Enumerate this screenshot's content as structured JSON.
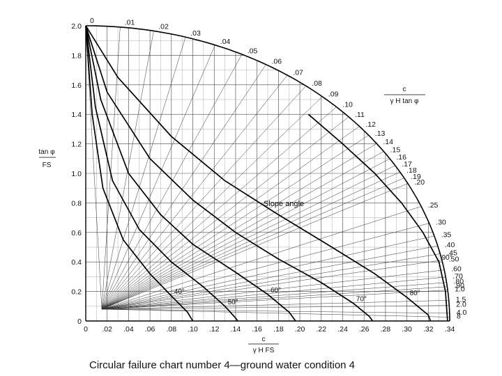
{
  "caption": "Circular failure chart number 4—ground water condition 4",
  "chart_data": {
    "type": "line",
    "title": "",
    "xlabel": {
      "top": "c",
      "bottom": "γ H FS"
    },
    "ylabel": {
      "top": "tan φ",
      "bottom": "FS"
    },
    "right_label": {
      "top": "c",
      "bottom": "γ H tan φ"
    },
    "xlim": [
      0,
      0.34
    ],
    "ylim": [
      0,
      2.0
    ],
    "grid": true,
    "x_ticks": [
      {
        "value": 0,
        "label": "0"
      },
      {
        "value": 0.02,
        "label": ".02"
      },
      {
        "value": 0.04,
        "label": ".04"
      },
      {
        "value": 0.06,
        "label": ".06"
      },
      {
        "value": 0.08,
        "label": ".08"
      },
      {
        "value": 0.1,
        "label": ".10"
      },
      {
        "value": 0.12,
        "label": ".12"
      },
      {
        "value": 0.14,
        "label": ".14"
      },
      {
        "value": 0.16,
        "label": ".16"
      },
      {
        "value": 0.18,
        "label": ".18"
      },
      {
        "value": 0.2,
        "label": ".20"
      },
      {
        "value": 0.22,
        "label": ".22"
      },
      {
        "value": 0.24,
        "label": ".24"
      },
      {
        "value": 0.26,
        "label": ".26"
      },
      {
        "value": 0.28,
        "label": ".28"
      },
      {
        "value": 0.3,
        "label": ".30"
      },
      {
        "value": 0.32,
        "label": ".32"
      },
      {
        "value": 0.34,
        "label": ".34"
      }
    ],
    "y_ticks": [
      {
        "value": 0,
        "label": "0"
      },
      {
        "value": 0.2,
        "label": "0.2"
      },
      {
        "value": 0.4,
        "label": "0.4"
      },
      {
        "value": 0.6,
        "label": "0.6"
      },
      {
        "value": 0.8,
        "label": "0.8"
      },
      {
        "value": 1.0,
        "label": "1.0"
      },
      {
        "value": 1.2,
        "label": "1.2"
      },
      {
        "value": 1.4,
        "label": "1.4"
      },
      {
        "value": 1.6,
        "label": "1.6"
      },
      {
        "value": 1.8,
        "label": "1.8"
      },
      {
        "value": 2.0,
        "label": "2.0"
      }
    ],
    "ratio_labels": [
      {
        "ratio": 0,
        "label": "0"
      },
      {
        "ratio": 0.01,
        "label": ".01"
      },
      {
        "ratio": 0.02,
        "label": ".02"
      },
      {
        "ratio": 0.03,
        "label": ".03"
      },
      {
        "ratio": 0.04,
        "label": ".04"
      },
      {
        "ratio": 0.05,
        "label": ".05"
      },
      {
        "ratio": 0.06,
        "label": ".06"
      },
      {
        "ratio": 0.07,
        "label": ".07"
      },
      {
        "ratio": 0.08,
        "label": ".08"
      },
      {
        "ratio": 0.09,
        "label": ".09"
      },
      {
        "ratio": 0.1,
        "label": ".10"
      },
      {
        "ratio": 0.11,
        "label": ".11"
      },
      {
        "ratio": 0.12,
        "label": ".12"
      },
      {
        "ratio": 0.13,
        "label": ".13"
      },
      {
        "ratio": 0.14,
        "label": ".14"
      },
      {
        "ratio": 0.15,
        "label": ".15"
      },
      {
        "ratio": 0.16,
        "label": ".16"
      },
      {
        "ratio": 0.17,
        "label": ".17"
      },
      {
        "ratio": 0.18,
        "label": ".18"
      },
      {
        "ratio": 0.19,
        "label": ".19"
      },
      {
        "ratio": 0.2,
        "label": ".20"
      },
      {
        "ratio": 0.25,
        "label": ".25"
      },
      {
        "ratio": 0.3,
        "label": ".30"
      },
      {
        "ratio": 0.35,
        "label": ".35"
      },
      {
        "ratio": 0.4,
        "label": ".40"
      },
      {
        "ratio": 0.45,
        "label": ".45"
      },
      {
        "ratio": 0.5,
        "label": ".50"
      },
      {
        "ratio": 0.6,
        "label": ".60"
      },
      {
        "ratio": 0.7,
        "label": ".70"
      },
      {
        "ratio": 0.8,
        "label": ".80"
      },
      {
        "ratio": 0.9,
        "label": ".90"
      },
      {
        "ratio": 1.0,
        "label": "1.0"
      },
      {
        "ratio": 1.5,
        "label": "1.5"
      },
      {
        "ratio": 2.0,
        "label": "2.0"
      },
      {
        "ratio": 4.0,
        "label": "4.0"
      },
      {
        "ratio": 8.0,
        "label": "8"
      }
    ],
    "slope_angle_label": "Slope angle",
    "series": [
      {
        "name": "90°",
        "points": [
          [
            0.208,
            1.4
          ],
          [
            0.24,
            1.2
          ],
          [
            0.27,
            1.0
          ],
          [
            0.295,
            0.8
          ],
          [
            0.315,
            0.6
          ],
          [
            0.33,
            0.4
          ],
          [
            0.336,
            0.2
          ],
          [
            0.338,
            0.0
          ]
        ]
      },
      {
        "name": "80°",
        "points": [
          [
            0.0,
            2.0
          ],
          [
            0.03,
            1.65
          ],
          [
            0.08,
            1.25
          ],
          [
            0.13,
            0.95
          ],
          [
            0.18,
            0.72
          ],
          [
            0.23,
            0.5
          ],
          [
            0.27,
            0.32
          ],
          [
            0.3,
            0.16
          ],
          [
            0.32,
            0.04
          ],
          [
            0.322,
            0.0
          ]
        ]
      },
      {
        "name": "70°",
        "points": [
          [
            0.0,
            2.0
          ],
          [
            0.02,
            1.55
          ],
          [
            0.06,
            1.1
          ],
          [
            0.1,
            0.82
          ],
          [
            0.14,
            0.6
          ],
          [
            0.18,
            0.42
          ],
          [
            0.22,
            0.26
          ],
          [
            0.25,
            0.12
          ],
          [
            0.265,
            0.03
          ],
          [
            0.268,
            0.0
          ]
        ]
      },
      {
        "name": "60°",
        "points": [
          [
            0.0,
            2.0
          ],
          [
            0.014,
            1.5
          ],
          [
            0.04,
            1.0
          ],
          [
            0.07,
            0.72
          ],
          [
            0.1,
            0.52
          ],
          [
            0.14,
            0.33
          ],
          [
            0.17,
            0.18
          ],
          [
            0.19,
            0.06
          ],
          [
            0.196,
            0.0
          ]
        ]
      },
      {
        "name": "50°",
        "points": [
          [
            0.0,
            2.0
          ],
          [
            0.009,
            1.45
          ],
          [
            0.025,
            0.95
          ],
          [
            0.05,
            0.62
          ],
          [
            0.08,
            0.4
          ],
          [
            0.11,
            0.23
          ],
          [
            0.13,
            0.1
          ],
          [
            0.14,
            0.02
          ],
          [
            0.142,
            0.0
          ]
        ]
      },
      {
        "name": "40°",
        "points": [
          [
            0.0,
            2.0
          ],
          [
            0.006,
            1.4
          ],
          [
            0.016,
            0.9
          ],
          [
            0.035,
            0.55
          ],
          [
            0.06,
            0.32
          ],
          [
            0.08,
            0.17
          ],
          [
            0.095,
            0.06
          ],
          [
            0.1,
            0.0
          ]
        ]
      }
    ]
  }
}
